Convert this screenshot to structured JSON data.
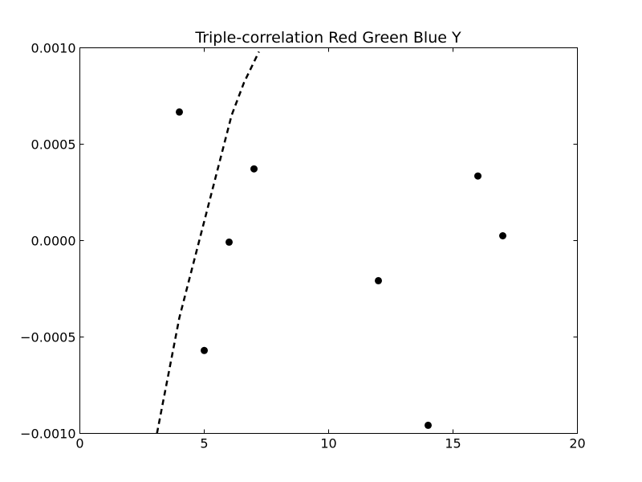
{
  "chart_data": {
    "type": "scatter",
    "title": "Triple-correlation Red Green Blue Y",
    "xlabel": "",
    "ylabel": "",
    "xlim": [
      0,
      20
    ],
    "ylim": [
      -0.001,
      0.001
    ],
    "grid": false,
    "x_ticks": [
      0,
      5,
      10,
      15,
      20
    ],
    "x_tick_labels": [
      "0",
      "5",
      "10",
      "15",
      "20"
    ],
    "y_ticks": [
      -0.001,
      -0.0005,
      0.0,
      0.0005,
      0.001
    ],
    "y_tick_labels": [
      "−0.0010",
      "−0.0005",
      "0.0000",
      "0.0005",
      "0.0010"
    ],
    "series": [
      {
        "kind": "points",
        "color": "#000000",
        "marker": "circle",
        "points": [
          {
            "x": 4,
            "y": 0.000667
          },
          {
            "x": 5,
            "y": -0.00057
          },
          {
            "x": 6,
            "y": -8e-06
          },
          {
            "x": 7,
            "y": 0.000372
          },
          {
            "x": 12,
            "y": -0.000208
          },
          {
            "x": 14,
            "y": -0.000958
          },
          {
            "x": 16,
            "y": 0.000335
          },
          {
            "x": 17,
            "y": 2.5e-05
          }
        ]
      },
      {
        "kind": "line",
        "style": "dashed",
        "color": "#000000",
        "points": [
          {
            "x": 3.1,
            "y": -0.001
          },
          {
            "x": 3.4,
            "y": -0.0008
          },
          {
            "x": 3.7,
            "y": -0.0006
          },
          {
            "x": 4.0,
            "y": -0.0004
          },
          {
            "x": 4.4,
            "y": -0.0002
          },
          {
            "x": 4.8,
            "y": 0.0
          },
          {
            "x": 5.2,
            "y": 0.0002
          },
          {
            "x": 5.7,
            "y": 0.00045
          },
          {
            "x": 6.1,
            "y": 0.00065
          },
          {
            "x": 6.6,
            "y": 0.00082
          },
          {
            "x": 7.2,
            "y": 0.00098
          }
        ]
      }
    ]
  }
}
